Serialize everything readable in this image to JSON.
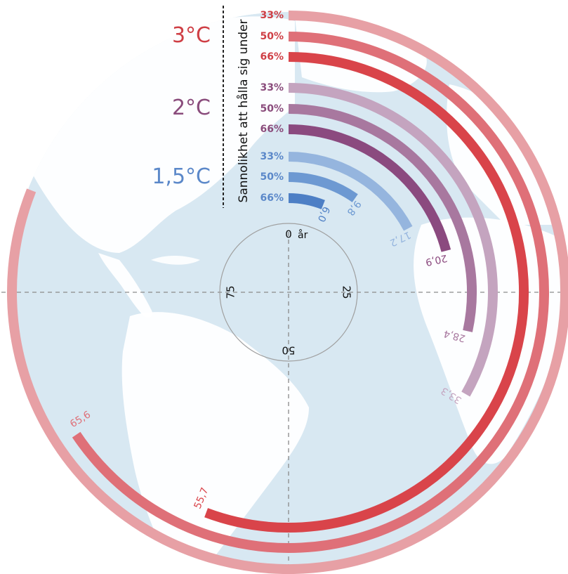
{
  "chart_data": {
    "type": "radial-bar",
    "title": "",
    "unit_label": "år",
    "axis_ticks": [
      "0",
      "25",
      "50",
      "75"
    ],
    "axis_max": 100,
    "y_axis_label": "Sannolikhet att hålla sig under",
    "groups": [
      {
        "name": "1,5°C",
        "color": "#5b88c9",
        "series": [
          {
            "probability": "66%",
            "value": 6.0,
            "value_label": "6,0",
            "color": "#4d7fc5"
          },
          {
            "probability": "50%",
            "value": 9.8,
            "value_label": "9,8",
            "color": "#6d99d2"
          },
          {
            "probability": "33%",
            "value": 17.2,
            "value_label": "17,2",
            "color": "#95b5de"
          }
        ]
      },
      {
        "name": "2°C",
        "color": "#8a4c7c",
        "series": [
          {
            "probability": "66%",
            "value": 20.9,
            "value_label": "20,9",
            "color": "#8b4a7f"
          },
          {
            "probability": "50%",
            "value": 28.4,
            "value_label": "28,4",
            "color": "#a8789f"
          },
          {
            "probability": "33%",
            "value": 33.3,
            "value_label": "33,3",
            "color": "#c4a4bf"
          }
        ]
      },
      {
        "name": "3°C",
        "color": "#cf3f45",
        "series": [
          {
            "probability": "66%",
            "value": 55.7,
            "value_label": "55,7",
            "color": "#d9444a"
          },
          {
            "probability": "50%",
            "value": 65.6,
            "value_label": "65,6",
            "color": "#df7078"
          },
          {
            "probability": "33%",
            "value": 81.0,
            "value_label": "",
            "color": "#e7a0a5"
          }
        ]
      }
    ]
  },
  "colors": {
    "globe_ocean": "#d8e8f2",
    "globe_land": "#ffffff"
  }
}
